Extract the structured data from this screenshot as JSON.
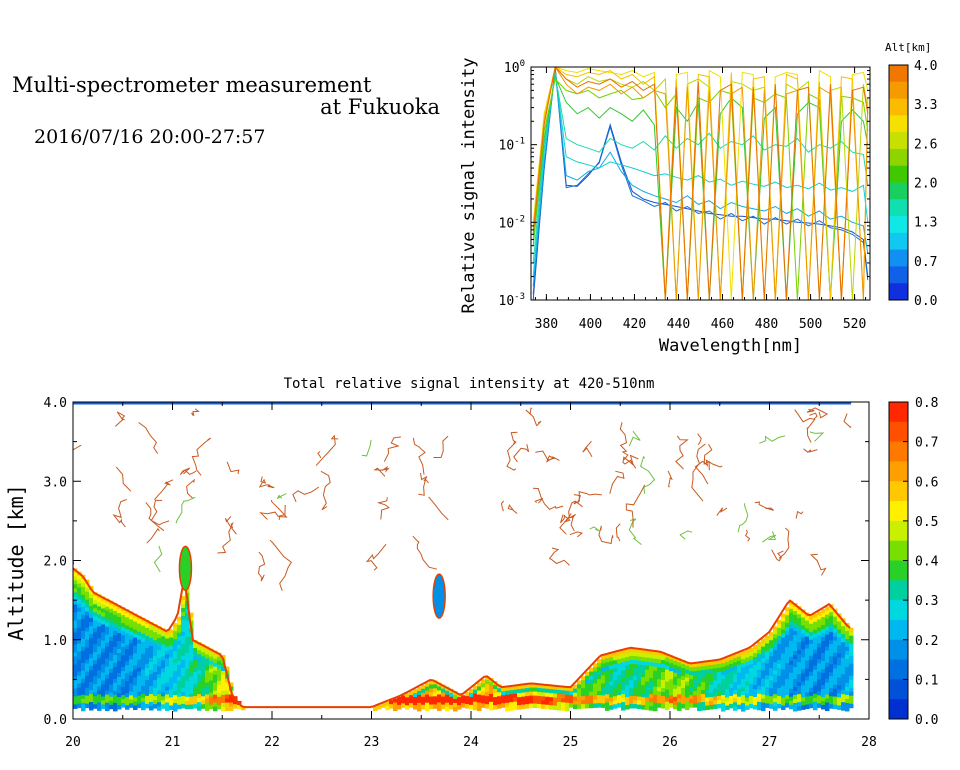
{
  "header": {
    "title_line1": "Multi-spectrometer measurement",
    "title_line2": "at Fukuoka",
    "subtitle": "2016/07/16 20:00-27:57"
  },
  "chart_data": [
    {
      "type": "line",
      "xlabel": "Wavelength[nm]",
      "ylabel": "Relative signal intensity",
      "yscale": "log",
      "xlim": [
        373,
        527
      ],
      "ylim": [
        0.001,
        1
      ],
      "x_ticks": [
        380,
        400,
        420,
        440,
        460,
        480,
        500,
        520
      ],
      "y_ticks": [
        {
          "value": 0.001,
          "base": "10",
          "exp": "-3"
        },
        {
          "value": 0.01,
          "base": "10",
          "exp": "-2"
        },
        {
          "value": 0.1,
          "base": "10",
          "exp": "-1"
        },
        {
          "value": 1,
          "base": "10",
          "exp": "0"
        }
      ],
      "x": [
        374,
        379,
        384,
        389,
        394,
        399,
        404,
        409,
        414,
        419,
        424,
        429,
        434,
        439,
        444,
        449,
        454,
        459,
        464,
        469,
        474,
        479,
        484,
        489,
        494,
        499,
        504,
        509,
        514,
        519,
        524,
        526
      ],
      "colorbar": {
        "label": "Alt[km]",
        "ticks": [
          "4.0",
          "3.3",
          "2.6",
          "2.0",
          "1.3",
          "0.7",
          "0.0"
        ],
        "colors": [
          "#f07800",
          "#f59a00",
          "#fbbc00",
          "#f5e000",
          "#c8e000",
          "#8ed400",
          "#40c800",
          "#18d060",
          "#10e0b0",
          "#10e8e8",
          "#10c8f0",
          "#1090f0",
          "#1060e8",
          "#1030e0"
        ]
      },
      "series": [
        {
          "color": "#1850c8",
          "values": [
            0.001,
            0.05,
            1,
            0.03,
            0.029,
            0.04,
            0.06,
            0.18,
            0.06,
            0.025,
            0.02,
            0.018,
            0.017,
            0.016,
            0.015,
            0.014,
            0.013,
            0.0125,
            0.012,
            0.012,
            0.0115,
            0.011,
            0.011,
            0.0105,
            0.01,
            0.0098,
            0.0095,
            0.009,
            0.0085,
            0.0075,
            0.006,
            0.002
          ]
        },
        {
          "color": "#1070d8",
          "values": [
            0.0012,
            0.05,
            0.95,
            0.028,
            0.03,
            0.042,
            0.058,
            0.17,
            0.055,
            0.022,
            0.019,
            0.016,
            0.018,
            0.014,
            0.016,
            0.013,
            0.014,
            0.011,
            0.013,
            0.0105,
            0.012,
            0.0095,
            0.0115,
            0.0095,
            0.011,
            0.009,
            0.0105,
            0.0085,
            0.008,
            0.007,
            0.0055,
            0.0018
          ]
        },
        {
          "color": "#10a8e8",
          "values": [
            0.0015,
            0.06,
            0.9,
            0.04,
            0.035,
            0.045,
            0.05,
            0.08,
            0.045,
            0.03,
            0.025,
            0.022,
            0.02,
            0.018,
            0.022,
            0.017,
            0.019,
            0.015,
            0.018,
            0.016,
            0.015,
            0.014,
            0.016,
            0.013,
            0.015,
            0.012,
            0.014,
            0.011,
            0.012,
            0.01,
            0.009,
            0.004
          ]
        },
        {
          "color": "#10d0d0",
          "values": [
            0.002,
            0.08,
            0.85,
            0.07,
            0.06,
            0.055,
            0.05,
            0.06,
            0.055,
            0.05,
            0.045,
            0.04,
            0.042,
            0.038,
            0.035,
            0.04,
            0.033,
            0.036,
            0.03,
            0.034,
            0.031,
            0.029,
            0.033,
            0.028,
            0.03,
            0.027,
            0.032,
            0.026,
            0.028,
            0.025,
            0.03,
            0.01
          ]
        },
        {
          "color": "#20d8a8",
          "values": [
            0.003,
            0.1,
            0.8,
            0.12,
            0.1,
            0.09,
            0.08,
            0.12,
            0.1,
            0.09,
            0.11,
            0.085,
            0.13,
            0.09,
            0.12,
            0.1,
            0.14,
            0.09,
            0.11,
            0.1,
            0.13,
            0.085,
            0.1,
            0.095,
            0.12,
            0.08,
            0.1,
            0.09,
            0.11,
            0.08,
            0.075,
            0.03
          ]
        },
        {
          "color": "#30c830",
          "values": [
            0.005,
            0.12,
            0.75,
            0.35,
            0.25,
            0.3,
            0.22,
            0.3,
            0.25,
            0.2,
            0.28,
            0.18,
            0.001,
            0.3,
            0.2,
            0.35,
            0.001,
            0.25,
            0.4,
            0.3,
            0.001,
            0.22,
            0.3,
            0.001,
            0.25,
            0.35,
            0.3,
            0.001,
            0.2,
            0.28,
            0.2,
            0.1
          ]
        },
        {
          "color": "#78d000",
          "values": [
            0.006,
            0.15,
            0.7,
            0.5,
            0.45,
            0.5,
            0.4,
            0.45,
            0.5,
            0.38,
            0.4,
            0.5,
            0.3,
            0.45,
            0.001,
            0.4,
            0.35,
            0.5,
            0.45,
            0.001,
            0.4,
            0.35,
            0.45,
            0.4,
            0.001,
            0.45,
            0.38,
            0.001,
            0.42,
            0.4,
            0.35,
            0.15
          ]
        },
        {
          "color": "#b8d800",
          "values": [
            0.008,
            0.2,
            1,
            0.7,
            0.6,
            0.75,
            0.65,
            0.7,
            0.6,
            0.55,
            0.65,
            0.5,
            0.7,
            0.001,
            0.6,
            0.7,
            0.55,
            0.001,
            0.65,
            0.6,
            0.5,
            0.55,
            0.001,
            0.6,
            0.5,
            0.65,
            0.001,
            0.5,
            0.55,
            0.001,
            0.6,
            0.3
          ]
        },
        {
          "color": "#f0e000",
          "values": [
            0.01,
            0.25,
            1,
            0.9,
            0.85,
            0.95,
            0.9,
            0.85,
            0.8,
            0.9,
            0.75,
            0.85,
            0.001,
            0.8,
            0.85,
            0.001,
            0.9,
            0.75,
            0.001,
            0.85,
            0.8,
            0.001,
            0.75,
            0.85,
            0.8,
            0.001,
            0.9,
            0.75,
            0.001,
            0.8,
            0.85,
            0.5
          ]
        },
        {
          "color": "#f8c000",
          "values": [
            0.009,
            0.22,
            1,
            0.8,
            0.75,
            0.85,
            0.8,
            0.9,
            0.7,
            0.8,
            0.6,
            0.75,
            0.001,
            0.7,
            0.001,
            0.8,
            0.75,
            0.001,
            0.85,
            0.001,
            0.7,
            0.75,
            0.001,
            0.8,
            0.7,
            0.001,
            0.65,
            0.001,
            0.75,
            0.7,
            0.001,
            0.4
          ]
        },
        {
          "color": "#f09800",
          "values": [
            0.008,
            0.2,
            1,
            0.6,
            0.45,
            0.55,
            0.5,
            0.6,
            0.45,
            0.55,
            0.4,
            0.5,
            0.45,
            0.001,
            0.55,
            0.001,
            0.5,
            0.001,
            0.45,
            0.55,
            0.001,
            0.5,
            0.001,
            0.45,
            0.5,
            0.001,
            0.55,
            0.45,
            0.001,
            0.5,
            0.001,
            0.3
          ]
        },
        {
          "color": "#e87000",
          "values": [
            0.007,
            0.18,
            1,
            0.7,
            0.55,
            0.65,
            0.6,
            0.7,
            0.55,
            0.65,
            0.5,
            0.6,
            0.001,
            0.55,
            0.001,
            0.65,
            0.001,
            0.5,
            0.6,
            0.001,
            0.55,
            0.001,
            0.6,
            0.001,
            0.5,
            0.55,
            0.001,
            0.6,
            0.001,
            0.5,
            0.55,
            0.25
          ]
        }
      ]
    },
    {
      "type": "heatmap",
      "title": "Total relative signal intensity at 420-510nm",
      "ylabel": "Altitude [km]",
      "xlim": [
        20,
        28
      ],
      "ylim": [
        0,
        4
      ],
      "x_ticks": [
        "20",
        "21",
        "22",
        "23",
        "24",
        "25",
        "26",
        "27",
        "28"
      ],
      "y_ticks": [
        "0.0",
        "1.0",
        "2.0",
        "3.0",
        "4.0"
      ],
      "colorbar": {
        "ticks": [
          "0.8",
          "0.7",
          "0.6",
          "0.5",
          "0.4",
          "0.3",
          "0.2",
          "0.1",
          "0.0"
        ],
        "colors": [
          "#ff2800",
          "#ff5000",
          "#ff7800",
          "#ffa000",
          "#ffc800",
          "#fff000",
          "#c8f000",
          "#78e000",
          "#28d028",
          "#00d0a0",
          "#00d8e0",
          "#00b8f0",
          "#0090e8",
          "#0070e0",
          "#0050d8",
          "#0030d0"
        ]
      },
      "boundary_layer_top": [
        [
          20.0,
          1.9
        ],
        [
          20.1,
          1.8
        ],
        [
          20.2,
          1.6
        ],
        [
          20.35,
          1.5
        ],
        [
          20.5,
          1.4
        ],
        [
          20.65,
          1.3
        ],
        [
          20.8,
          1.2
        ],
        [
          20.95,
          1.1
        ],
        [
          21.05,
          1.3
        ],
        [
          21.12,
          1.8
        ],
        [
          21.2,
          1.0
        ],
        [
          21.35,
          0.9
        ],
        [
          21.5,
          0.8
        ],
        [
          21.6,
          0.3
        ],
        [
          21.7,
          0.15
        ],
        [
          22.0,
          0.15
        ],
        [
          22.5,
          0.15
        ],
        [
          23.0,
          0.15
        ],
        [
          23.3,
          0.3
        ],
        [
          23.6,
          0.5
        ],
        [
          23.9,
          0.3
        ],
        [
          24.15,
          0.55
        ],
        [
          24.3,
          0.4
        ],
        [
          24.6,
          0.45
        ],
        [
          25.0,
          0.4
        ],
        [
          25.3,
          0.8
        ],
        [
          25.6,
          0.9
        ],
        [
          25.9,
          0.85
        ],
        [
          26.2,
          0.7
        ],
        [
          26.5,
          0.75
        ],
        [
          26.8,
          0.9
        ],
        [
          27.0,
          1.1
        ],
        [
          27.2,
          1.5
        ],
        [
          27.4,
          1.3
        ],
        [
          27.6,
          1.45
        ],
        [
          27.8,
          1.15
        ]
      ],
      "boundary_layer_value": [
        [
          20.0,
          0.15
        ],
        [
          20.5,
          0.15
        ],
        [
          21.0,
          0.25
        ],
        [
          21.3,
          0.35
        ],
        [
          21.6,
          0.6
        ],
        [
          22.0,
          0.6
        ],
        [
          23.0,
          0.6
        ],
        [
          23.3,
          0.6
        ],
        [
          24.0,
          0.6
        ],
        [
          24.6,
          0.55
        ],
        [
          25.0,
          0.45
        ],
        [
          25.5,
          0.3
        ],
        [
          26.0,
          0.45
        ],
        [
          26.5,
          0.3
        ],
        [
          27.0,
          0.2
        ],
        [
          27.5,
          0.15
        ],
        [
          27.8,
          0.2
        ]
      ],
      "cloud_patches": [
        {
          "x": 23.68,
          "y": 1.55,
          "value": 0.15
        },
        {
          "x": 21.13,
          "y": 1.9,
          "value": 0.35
        }
      ]
    }
  ]
}
